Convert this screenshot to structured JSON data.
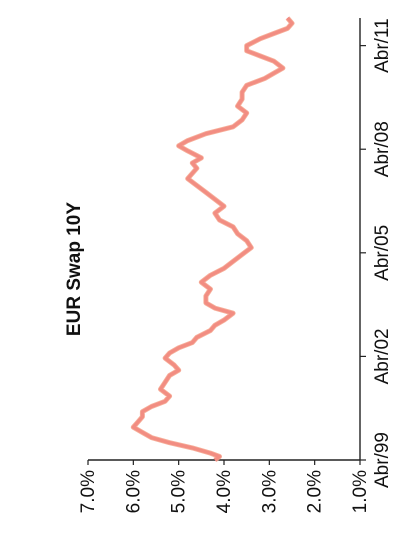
{
  "chart_data": {
    "type": "line",
    "title": "EUR Swap 10Y",
    "xlabel": "",
    "ylabel": "",
    "ylim": [
      1.0,
      7.0
    ],
    "y_ticks": [
      "1.0%",
      "2.0%",
      "3.0%",
      "4.0%",
      "5.0%",
      "6.0%",
      "7.0%"
    ],
    "x_ticks": [
      "Abr/99",
      "Abr/02",
      "Abr/05",
      "Abr/08",
      "Abr/11"
    ],
    "x_tick_values": [
      1999.25,
      2002.25,
      2005.25,
      2008.25,
      2011.25
    ],
    "xlim": [
      1999.25,
      2012.05
    ],
    "grid": false,
    "legend": "none",
    "line_color": "#f4a188",
    "accent_color": "#e02060",
    "series": [
      {
        "values": [
          [
            1999.25,
            4.2
          ],
          [
            1999.35,
            4.1
          ],
          [
            1999.45,
            4.3
          ],
          [
            1999.6,
            4.7
          ],
          [
            1999.75,
            5.2
          ],
          [
            1999.9,
            5.6
          ],
          [
            2000.05,
            5.8
          ],
          [
            2000.2,
            6.0
          ],
          [
            2000.35,
            5.9
          ],
          [
            2000.5,
            5.8
          ],
          [
            2000.65,
            5.8
          ],
          [
            2000.8,
            5.6
          ],
          [
            2000.95,
            5.3
          ],
          [
            2001.1,
            5.2
          ],
          [
            2001.3,
            5.4
          ],
          [
            2001.5,
            5.3
          ],
          [
            2001.7,
            5.2
          ],
          [
            2001.85,
            5.0
          ],
          [
            2002.0,
            5.1
          ],
          [
            2002.2,
            5.3
          ],
          [
            2002.35,
            5.2
          ],
          [
            2002.5,
            5.0
          ],
          [
            2002.65,
            4.7
          ],
          [
            2002.8,
            4.6
          ],
          [
            2003.0,
            4.3
          ],
          [
            2003.15,
            4.2
          ],
          [
            2003.3,
            4.0
          ],
          [
            2003.5,
            3.8
          ],
          [
            2003.65,
            4.2
          ],
          [
            2003.8,
            4.4
          ],
          [
            2004.0,
            4.4
          ],
          [
            2004.2,
            4.3
          ],
          [
            2004.4,
            4.5
          ],
          [
            2004.6,
            4.3
          ],
          [
            2004.8,
            4.0
          ],
          [
            2005.0,
            3.8
          ],
          [
            2005.2,
            3.6
          ],
          [
            2005.4,
            3.4
          ],
          [
            2005.6,
            3.5
          ],
          [
            2005.8,
            3.7
          ],
          [
            2006.0,
            3.8
          ],
          [
            2006.2,
            4.1
          ],
          [
            2006.4,
            4.2
          ],
          [
            2006.6,
            4.0
          ],
          [
            2006.8,
            4.2
          ],
          [
            2007.0,
            4.4
          ],
          [
            2007.2,
            4.6
          ],
          [
            2007.4,
            4.8
          ],
          [
            2007.55,
            4.7
          ],
          [
            2007.7,
            4.6
          ],
          [
            2007.85,
            4.7
          ],
          [
            2008.0,
            4.5
          ],
          [
            2008.2,
            4.8
          ],
          [
            2008.35,
            5.0
          ],
          [
            2008.5,
            4.8
          ],
          [
            2008.7,
            4.4
          ],
          [
            2008.9,
            3.8
          ],
          [
            2009.1,
            3.6
          ],
          [
            2009.3,
            3.5
          ],
          [
            2009.5,
            3.7
          ],
          [
            2009.7,
            3.6
          ],
          [
            2009.9,
            3.6
          ],
          [
            2010.1,
            3.5
          ],
          [
            2010.3,
            3.1
          ],
          [
            2010.45,
            2.9
          ],
          [
            2010.6,
            2.7
          ],
          [
            2010.8,
            2.9
          ],
          [
            2010.95,
            3.2
          ],
          [
            2011.1,
            3.5
          ],
          [
            2011.25,
            3.5
          ],
          [
            2011.45,
            3.2
          ],
          [
            2011.6,
            2.9
          ],
          [
            2011.75,
            2.6
          ],
          [
            2011.9,
            2.5
          ],
          [
            2012.05,
            2.6
          ]
        ]
      }
    ]
  }
}
